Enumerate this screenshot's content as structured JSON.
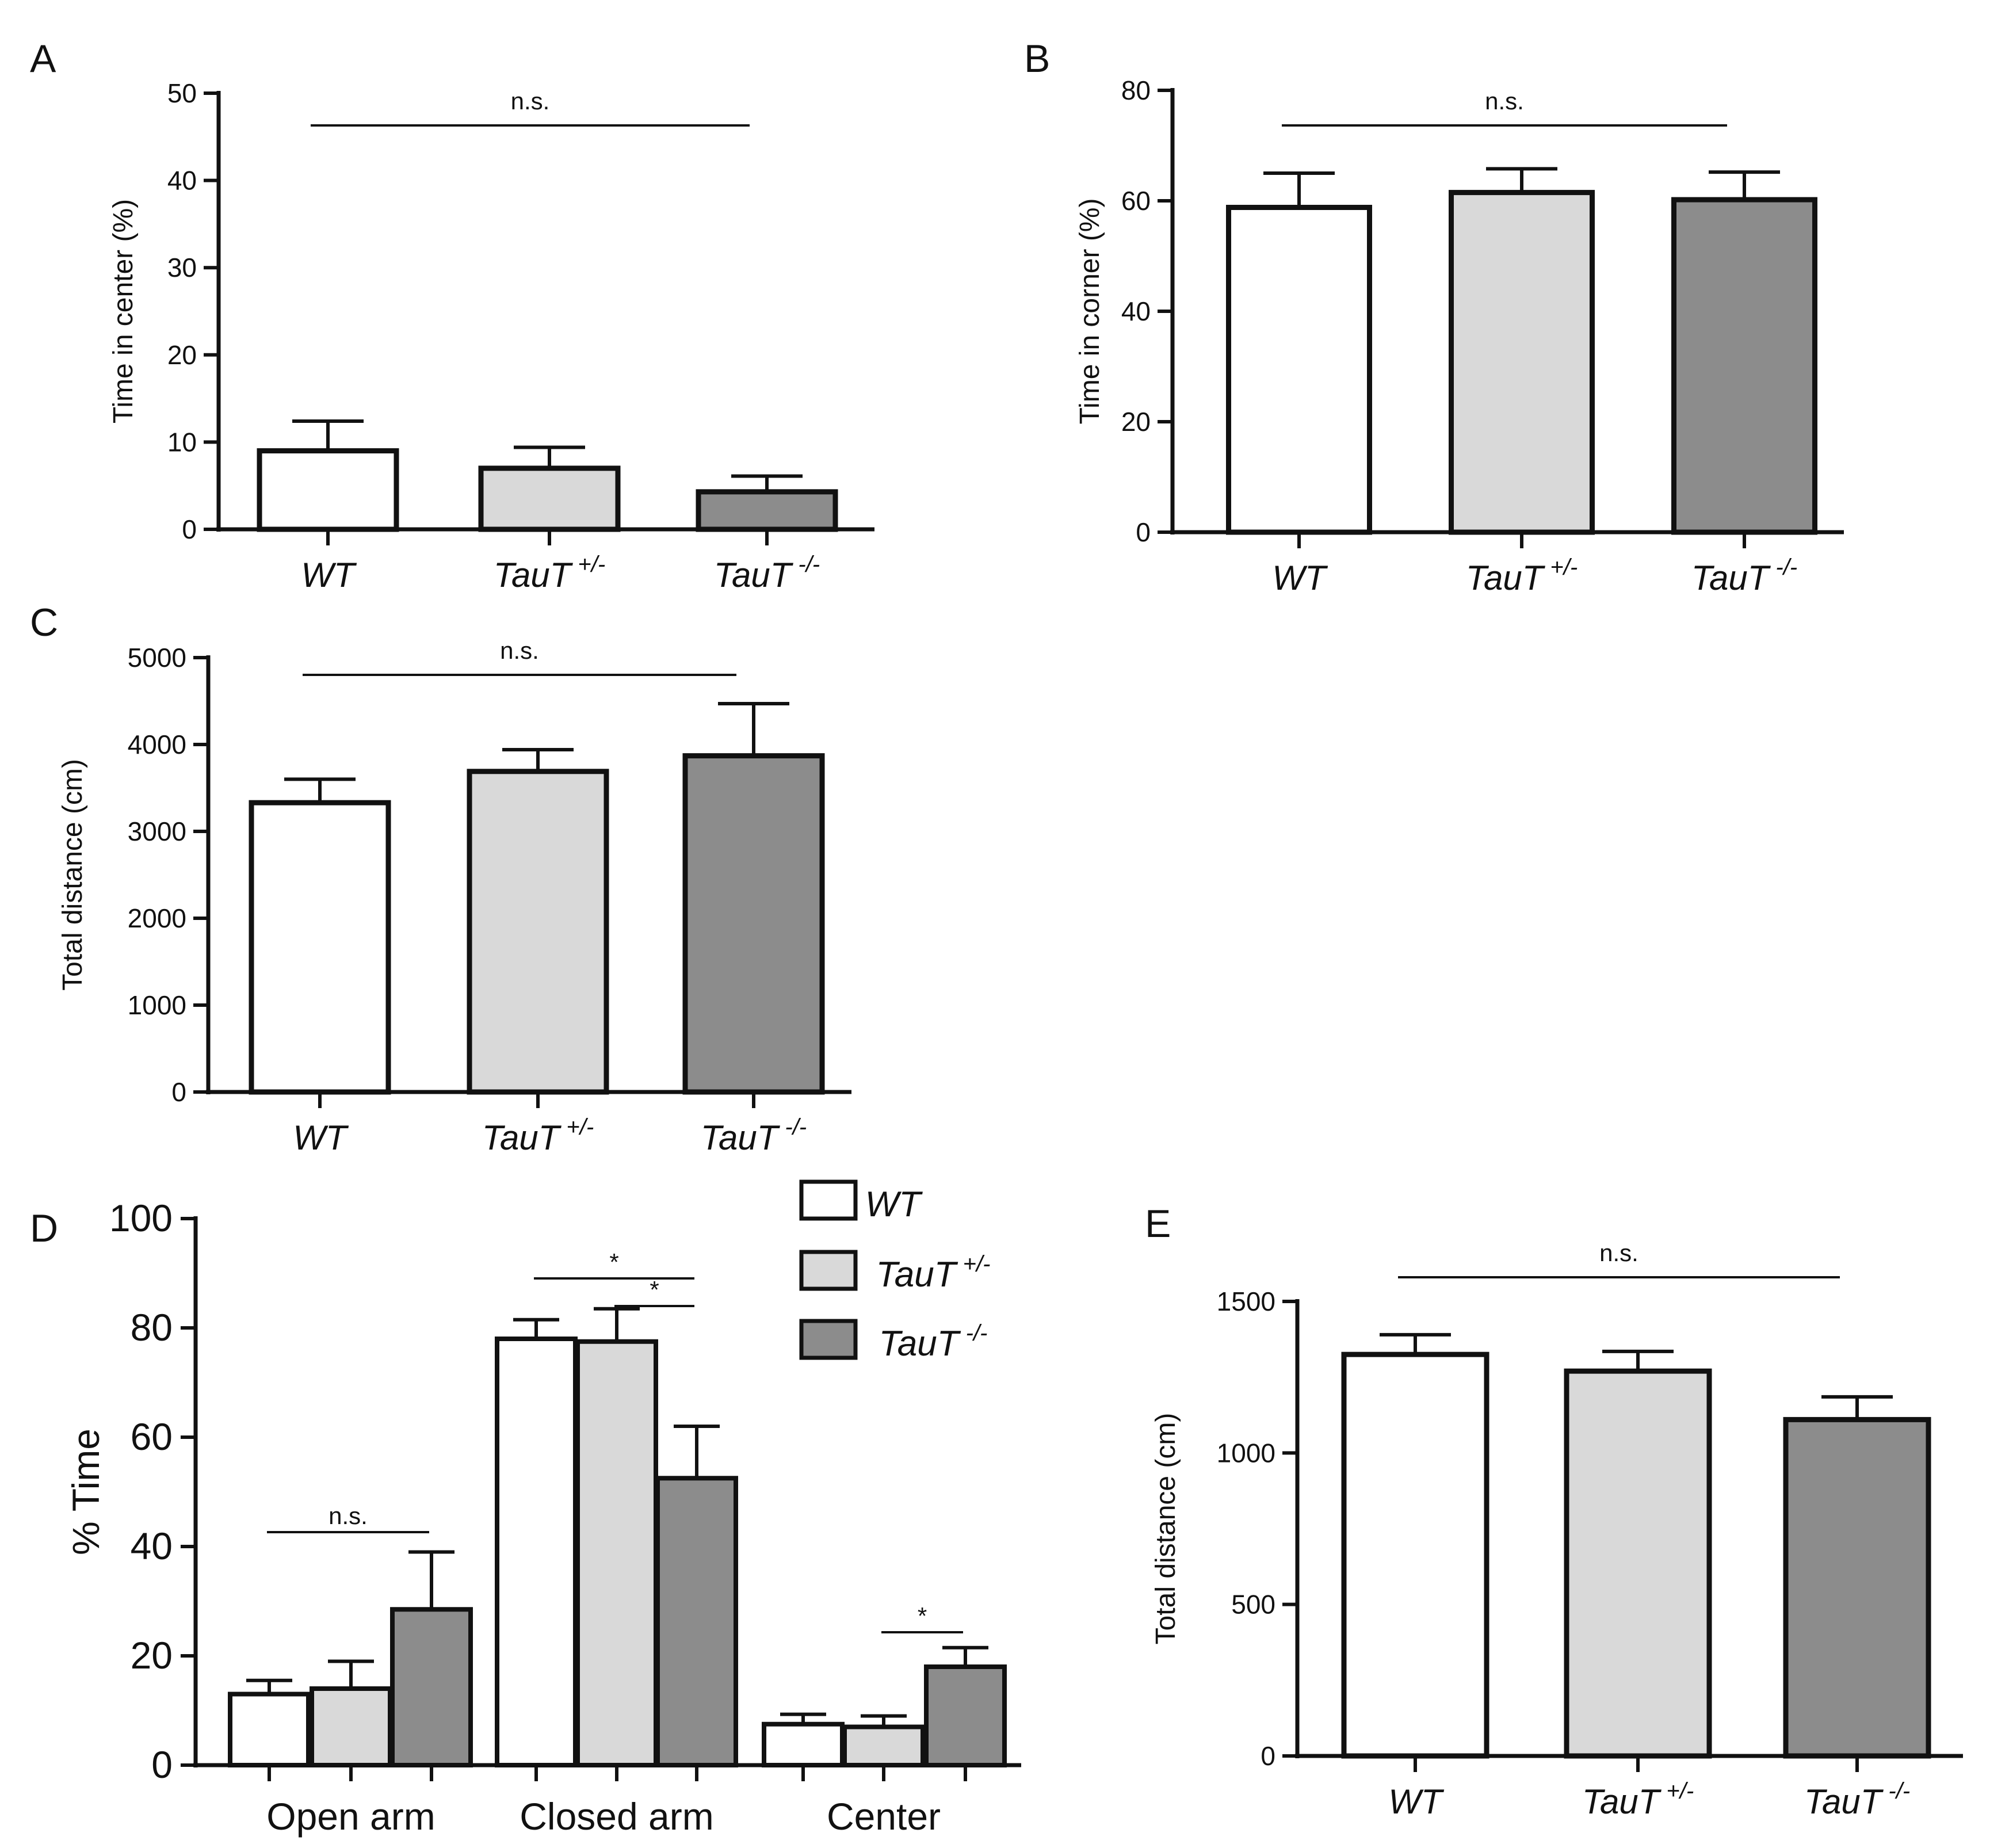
{
  "figure": {
    "colors": {
      "WT": "#ffffff",
      "TauT+/-": "#d9d9d9",
      "TauT-/-": "#8c8c8c",
      "stroke": "#111111"
    }
  },
  "chart_data": [
    {
      "id": "A",
      "type": "bar",
      "panel_label": "A",
      "ylabel": "Time in center (%)",
      "ylim": [
        0,
        50
      ],
      "yticks": [
        0,
        10,
        20,
        30,
        40,
        50
      ],
      "categories": [
        {
          "base": "WT",
          "sup": ""
        },
        {
          "base": "TauT",
          "sup": "+/-"
        },
        {
          "base": "TauT",
          "sup": "-/-"
        }
      ],
      "values": [
        9,
        7,
        4.3
      ],
      "errors": [
        3.4,
        2.4,
        1.8
      ],
      "colors": [
        "#ffffff",
        "#d9d9d9",
        "#8c8c8c"
      ],
      "significance": [
        {
          "from": 0,
          "to": 2,
          "label": "n.s."
        }
      ]
    },
    {
      "id": "B",
      "type": "bar",
      "panel_label": "B",
      "ylabel": "Time in corner (%)",
      "ylim": [
        0,
        80
      ],
      "yticks": [
        0,
        20,
        40,
        60,
        80
      ],
      "categories": [
        {
          "base": "WT",
          "sup": ""
        },
        {
          "base": "TauT",
          "sup": "+/-"
        },
        {
          "base": "TauT",
          "sup": "-/-"
        }
      ],
      "values": [
        58.8,
        61.5,
        60.2
      ],
      "errors": [
        6.2,
        4.3,
        5.0
      ],
      "colors": [
        "#ffffff",
        "#d9d9d9",
        "#8c8c8c"
      ],
      "significance": [
        {
          "from": 0,
          "to": 2,
          "label": "n.s."
        }
      ]
    },
    {
      "id": "C",
      "type": "bar",
      "panel_label": "C",
      "ylabel": "Total distance (cm)",
      "ylim": [
        0,
        5000
      ],
      "yticks": [
        0,
        1000,
        2000,
        3000,
        4000,
        5000
      ],
      "categories": [
        {
          "base": "WT",
          "sup": ""
        },
        {
          "base": "TauT",
          "sup": "+/-"
        },
        {
          "base": "TauT",
          "sup": "-/-"
        }
      ],
      "values": [
        3330,
        3690,
        3870
      ],
      "errors": [
        270,
        250,
        600
      ],
      "colors": [
        "#ffffff",
        "#d9d9d9",
        "#8c8c8c"
      ],
      "significance": [
        {
          "from": 0,
          "to": 2,
          "label": "n.s."
        }
      ]
    },
    {
      "id": "D",
      "type": "bar",
      "panel_label": "D",
      "ylabel": "% Time",
      "ylim": [
        0,
        100
      ],
      "yticks": [
        0,
        20,
        40,
        60,
        80,
        100
      ],
      "categories": [
        "Open arm",
        "Closed arm",
        "Center"
      ],
      "series": [
        {
          "name": "WT",
          "sup": "",
          "color": "#ffffff",
          "values": [
            13,
            78,
            7.5
          ],
          "errors": [
            2.5,
            3.5,
            1.8
          ]
        },
        {
          "name": "TauT",
          "sup": "+/-",
          "color": "#d9d9d9",
          "values": [
            14,
            77.5,
            7
          ],
          "errors": [
            5,
            6,
            2
          ]
        },
        {
          "name": "TauT",
          "sup": "-/-",
          "color": "#8c8c8c",
          "values": [
            28.5,
            52.5,
            18
          ],
          "errors": [
            10.5,
            9.5,
            3.5
          ]
        }
      ],
      "legend": "top-right",
      "significance": [
        {
          "group": 0,
          "from": 0,
          "to": 2,
          "label": "n.s."
        },
        {
          "group": 1,
          "from": 0,
          "to": 2,
          "label": "*"
        },
        {
          "group": 1,
          "from": 1,
          "to": 2,
          "label": "*"
        },
        {
          "group": 2,
          "from": 1,
          "to": 2,
          "label": "*"
        }
      ]
    },
    {
      "id": "E",
      "type": "bar",
      "panel_label": "E",
      "ylabel": "Total distance (cm)",
      "ylim": [
        0,
        1500
      ],
      "yticks": [
        0,
        500,
        1000,
        1500
      ],
      "categories": [
        {
          "base": "WT",
          "sup": ""
        },
        {
          "base": "TauT",
          "sup": "+/-"
        },
        {
          "base": "TauT",
          "sup": "-/-"
        }
      ],
      "values": [
        1325,
        1270,
        1110
      ],
      "errors": [
        65,
        65,
        75
      ],
      "colors": [
        "#ffffff",
        "#d9d9d9",
        "#8c8c8c"
      ],
      "significance": [
        {
          "from": 0,
          "to": 2,
          "label": "n.s."
        }
      ]
    }
  ]
}
